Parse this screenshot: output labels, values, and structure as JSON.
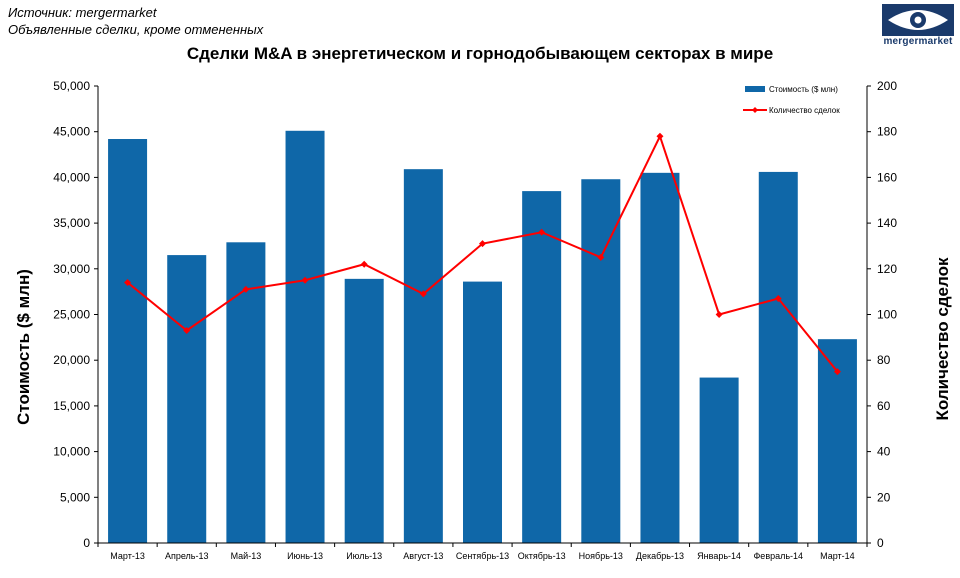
{
  "source": {
    "line1": "Источник: mergermarket",
    "line2": "Объявленные сделки, кроме отмененных"
  },
  "logo": {
    "icon": "eye-icon",
    "text": "mergermarket",
    "color": "#1a3a6b"
  },
  "chart_data": {
    "type": "bar",
    "title": "Сделки M&A  в энергетическом и горнодобывающем секторах в мире",
    "categories": [
      "Март-13",
      "Апрель-13",
      "Май-13",
      "Июнь-13",
      "Июль-13",
      "Август-13",
      "Сентябрь-13",
      "Октябрь-13",
      "Ноябрь-13",
      "Декабрь-13",
      "Январь-14",
      "Февраль-14",
      "Март-14"
    ],
    "ylabel": "Стоимость  ($ млн)",
    "y2label": "Количество сделок",
    "ylim": [
      0,
      50000
    ],
    "y2lim": [
      0,
      200
    ],
    "yticks": [
      "0",
      "5,000",
      "10,000",
      "15,000",
      "20,000",
      "25,000",
      "30,000",
      "35,000",
      "40,000",
      "45,000",
      "50,000"
    ],
    "y2ticks": [
      "0",
      "20",
      "40",
      "60",
      "80",
      "100",
      "120",
      "140",
      "160",
      "180",
      "200"
    ],
    "grid": false,
    "legend_position": "top-right",
    "series": [
      {
        "name": "Стоимость ($ млн)",
        "type": "bar",
        "axis": "left",
        "color": "#0f67a8",
        "values": [
          44200,
          31500,
          32900,
          45100,
          28900,
          40900,
          28600,
          38500,
          39800,
          40500,
          18100,
          40600,
          22300
        ]
      },
      {
        "name": "Количество сделок",
        "type": "line",
        "axis": "right",
        "color": "#ff0000",
        "values": [
          114,
          93,
          111,
          115,
          122,
          109,
          131,
          136,
          125,
          178,
          100,
          107,
          75
        ]
      }
    ]
  }
}
